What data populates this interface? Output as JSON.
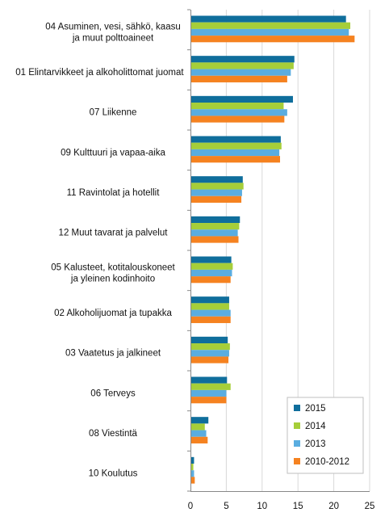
{
  "chart_data": {
    "type": "bar",
    "orientation": "horizontal",
    "categories": [
      "04 Asuminen, vesi, sähkö, kaasu\nja muut polttoaineet",
      "01 Elintarvikkeet ja alkoholittomat juomat",
      "07 Liikenne",
      "09 Kulttuuri ja vapaa-aika",
      "11 Ravintolat ja hotellit",
      "12 Muut tavarat ja palvelut",
      "05 Kalusteet, kotitalouskoneet\nja yleinen kodinhoito",
      "02 Alkoholijuomat ja tupakka",
      "03 Vaatetus ja jalkineet",
      "06 Terveys",
      "08 Viestintä",
      "10 Koulutus"
    ],
    "series": [
      {
        "name": "2015",
        "color": "#0f6e9c",
        "values": [
          21.7,
          14.5,
          14.3,
          12.6,
          7.3,
          6.9,
          5.7,
          5.4,
          5.2,
          5.1,
          2.5,
          0.5
        ]
      },
      {
        "name": "2014",
        "color": "#a6ce39",
        "values": [
          22.3,
          14.4,
          13.0,
          12.7,
          7.4,
          6.8,
          5.9,
          5.4,
          5.5,
          5.6,
          2.0,
          0.4
        ]
      },
      {
        "name": "2013",
        "color": "#5aade0",
        "values": [
          22.1,
          14.0,
          13.5,
          12.4,
          7.2,
          6.6,
          5.8,
          5.6,
          5.4,
          5.0,
          2.2,
          0.5
        ]
      },
      {
        "name": "2010-2012",
        "color": "#f58220",
        "values": [
          22.9,
          13.5,
          13.1,
          12.5,
          7.1,
          6.7,
          5.6,
          5.6,
          5.3,
          5.0,
          2.4,
          0.6
        ]
      }
    ],
    "xlim": [
      0,
      25
    ],
    "xticks": [
      "0",
      "5",
      "10",
      "15",
      "20",
      "25"
    ],
    "grid": true,
    "legend_position": "bottom-right"
  }
}
